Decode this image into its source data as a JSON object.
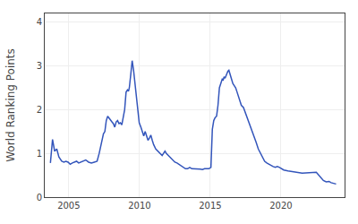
{
  "chart_data": {
    "type": "line",
    "ylabel": "World Ranking Points",
    "color": "#3355bb",
    "xlim": [
      2003.3,
      2024.5
    ],
    "ylim": [
      0,
      4.2
    ],
    "xticks": [
      2005,
      2010,
      2015,
      2020
    ],
    "yticks": [
      0,
      1,
      2,
      3,
      4
    ],
    "grid": true,
    "x": [
      2003.7,
      2003.85,
      2004.0,
      2004.15,
      2004.3,
      2004.5,
      2004.65,
      2004.8,
      2004.95,
      2005.1,
      2005.25,
      2005.4,
      2005.55,
      2005.7,
      2005.85,
      2006.0,
      2006.2,
      2006.4,
      2006.6,
      2006.8,
      2007.0,
      2007.15,
      2007.3,
      2007.45,
      2007.55,
      2007.65,
      2007.75,
      2007.85,
      2007.95,
      2008.05,
      2008.15,
      2008.25,
      2008.35,
      2008.45,
      2008.55,
      2008.65,
      2008.75,
      2008.85,
      2008.95,
      2009.05,
      2009.15,
      2009.22,
      2009.28,
      2009.38,
      2009.48,
      2009.58,
      2009.68,
      2009.78,
      2009.88,
      2009.98,
      2010.1,
      2010.2,
      2010.3,
      2010.4,
      2010.5,
      2010.6,
      2010.7,
      2010.8,
      2010.9,
      2011.0,
      2011.15,
      2011.3,
      2011.45,
      2011.6,
      2011.7,
      2011.8,
      2011.9,
      2012.05,
      2012.2,
      2012.35,
      2012.5,
      2012.65,
      2012.8,
      2012.95,
      2013.1,
      2013.25,
      2013.4,
      2013.55,
      2013.7,
      2013.85,
      2014.0,
      2014.15,
      2014.3,
      2014.45,
      2014.6,
      2014.75,
      2014.9,
      2015.05,
      2015.15,
      2015.25,
      2015.35,
      2015.45,
      2015.55,
      2015.65,
      2015.75,
      2015.85,
      2015.92,
      2015.98,
      2016.05,
      2016.12,
      2016.18,
      2016.25,
      2016.32,
      2016.4,
      2016.5,
      2016.6,
      2016.7,
      2016.8,
      2016.9,
      2017.05,
      2017.2,
      2017.35,
      2017.5,
      2017.65,
      2017.8,
      2017.95,
      2018.1,
      2018.25,
      2018.4,
      2018.55,
      2018.7,
      2018.85,
      2019.0,
      2019.15,
      2019.3,
      2019.45,
      2019.6,
      2019.75,
      2019.9,
      2020.05,
      2020.2,
      2020.5,
      2020.9,
      2021.5,
      2022.5,
      2023.0,
      2023.2,
      2023.4,
      2023.55,
      2023.7,
      2023.9
    ],
    "values": [
      0.78,
      1.32,
      1.05,
      1.1,
      0.92,
      0.82,
      0.8,
      0.82,
      0.8,
      0.75,
      0.78,
      0.8,
      0.82,
      0.78,
      0.8,
      0.82,
      0.85,
      0.8,
      0.78,
      0.8,
      0.82,
      1.0,
      1.2,
      1.45,
      1.5,
      1.75,
      1.85,
      1.8,
      1.75,
      1.72,
      1.68,
      1.6,
      1.72,
      1.75,
      1.68,
      1.7,
      1.65,
      1.8,
      2.0,
      2.4,
      2.45,
      2.42,
      2.5,
      2.8,
      3.12,
      2.9,
      2.6,
      2.2,
      1.9,
      1.7,
      1.6,
      1.5,
      1.4,
      1.5,
      1.38,
      1.3,
      1.35,
      1.42,
      1.3,
      1.2,
      1.1,
      1.05,
      1.0,
      0.95,
      1.0,
      1.05,
      1.0,
      0.95,
      0.9,
      0.85,
      0.8,
      0.78,
      0.75,
      0.72,
      0.68,
      0.65,
      0.65,
      0.68,
      0.65,
      0.65,
      0.65,
      0.65,
      0.64,
      0.63,
      0.65,
      0.65,
      0.65,
      0.68,
      1.55,
      1.75,
      1.82,
      1.85,
      2.1,
      2.5,
      2.6,
      2.7,
      2.68,
      2.75,
      2.72,
      2.78,
      2.82,
      2.88,
      2.9,
      2.8,
      2.7,
      2.6,
      2.55,
      2.5,
      2.4,
      2.25,
      2.1,
      2.05,
      1.92,
      1.8,
      1.65,
      1.5,
      1.38,
      1.25,
      1.1,
      1.0,
      0.9,
      0.82,
      0.78,
      0.75,
      0.72,
      0.7,
      0.68,
      0.7,
      0.68,
      0.65,
      0.62,
      0.6,
      0.58,
      0.55,
      0.57,
      0.38,
      0.35,
      0.36,
      0.33,
      0.32,
      0.3
    ]
  }
}
